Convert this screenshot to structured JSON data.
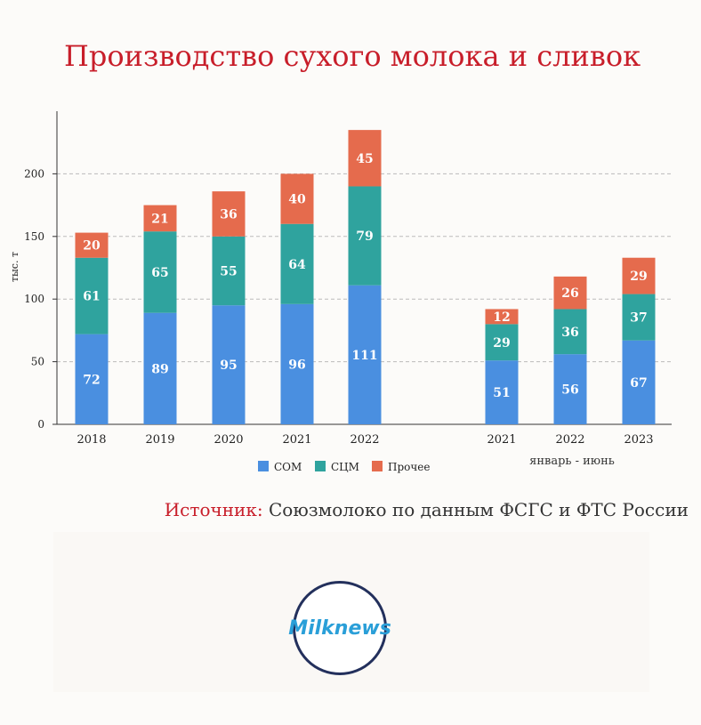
{
  "title": "Производство сухого молока и сливок",
  "source": {
    "label": "Источник:",
    "text": "Союзмолоко по данным ФСГС и ФТС России"
  },
  "logo_text": "Milknews",
  "colors": {
    "title": "#c81e2a",
    "СОМ": "#4a8fe0",
    "СЦМ": "#2fa39e",
    "Прочее": "#e56b4d"
  },
  "chart_data": {
    "type": "bar",
    "stacked": true,
    "ylabel": "тыс. т",
    "ylim": [
      0,
      250
    ],
    "yticks": [
      0,
      50,
      100,
      150,
      200
    ],
    "grid": true,
    "legend": "bottom",
    "categories": [
      "2018",
      "2019",
      "2020",
      "2021",
      "2022",
      "2021",
      "2022",
      "2023"
    ],
    "group_label": "январь - июнь",
    "series": [
      {
        "name": "СОМ",
        "values": [
          72,
          89,
          95,
          96,
          111,
          51,
          56,
          67
        ]
      },
      {
        "name": "СЦМ",
        "values": [
          61,
          65,
          55,
          64,
          79,
          29,
          36,
          37
        ]
      },
      {
        "name": "Прочее",
        "values": [
          20,
          21,
          36,
          40,
          45,
          12,
          26,
          29
        ]
      }
    ]
  }
}
